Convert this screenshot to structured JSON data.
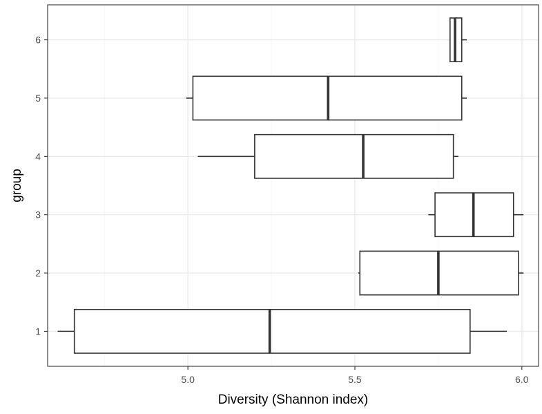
{
  "chart_data": {
    "type": "boxplot",
    "orientation": "horizontal",
    "title": "",
    "xlabel": "Diversity (Shannon index)",
    "ylabel": "group",
    "xlim": [
      4.58,
      6.05
    ],
    "x_ticks": [
      5.0,
      5.5,
      6.0
    ],
    "x_tick_labels": [
      "5.0",
      "5.5",
      "6.0"
    ],
    "x_minor_ticks": [
      4.75,
      5.25,
      5.75
    ],
    "y_ticks": [
      1,
      2,
      3,
      4,
      5,
      6
    ],
    "y_tick_labels": [
      "1",
      "2",
      "3",
      "4",
      "5",
      "6"
    ],
    "grid": true,
    "theme": "bw",
    "colors": {
      "box_stroke": "#333333",
      "box_fill": "#ffffff",
      "grid_major": "#ebebeb",
      "grid_minor": "#f5f5f5",
      "panel_border": "#333333"
    },
    "groups": [
      {
        "label": "1",
        "min": 4.61,
        "q1": 4.66,
        "median": 5.245,
        "q3": 5.845,
        "max": 5.955
      },
      {
        "label": "2",
        "min": 5.51,
        "q1": 5.515,
        "median": 5.75,
        "q3": 5.99,
        "max": 6.005
      },
      {
        "label": "3",
        "min": 5.72,
        "q1": 5.74,
        "median": 5.855,
        "q3": 5.975,
        "max": 6.005
      },
      {
        "label": "4",
        "min": 5.03,
        "q1": 5.2,
        "median": 5.525,
        "q3": 5.795,
        "max": 5.81
      },
      {
        "label": "5",
        "min": 4.995,
        "q1": 5.015,
        "median": 5.42,
        "q3": 5.82,
        "max": 5.835
      },
      {
        "label": "6",
        "min": 5.785,
        "q1": 5.785,
        "median": 5.8,
        "q3": 5.82,
        "max": 5.835
      }
    ]
  }
}
